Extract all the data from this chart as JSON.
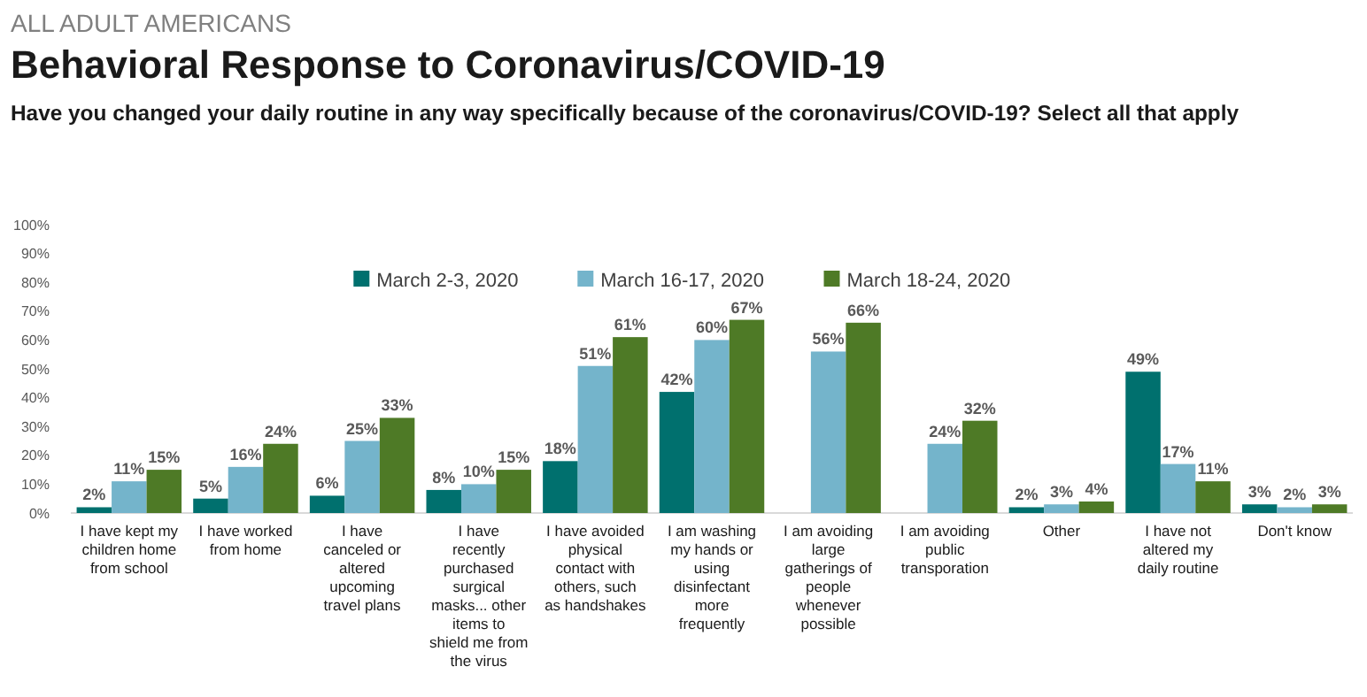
{
  "chart_data": {
    "type": "bar",
    "title": "Behavioral Response to Coronavirus/COVID-19",
    "subtitle": "Have you changed your daily routine in any way specifically because of the coronavirus/COVID-19? Select all that apply",
    "annotations": [
      "ALL ADULT AMERICANS"
    ],
    "categories": [
      "I have kept my children home from school",
      "I have worked from home",
      "I have canceled or altered upcoming travel plans",
      "I have recently purchased surgical masks... other items to shield me from the virus",
      "I have avoided physical contact with others, such as handshakes",
      "I am washing my hands or using disinfectant more frequently",
      "I am avoiding large gatherings of people whenever possible",
      "I am avoiding public transporation",
      "Other",
      "I have not altered my daily routine",
      "Don't know"
    ],
    "series": [
      {
        "name": "March 2-3, 2020",
        "color": "#00706e",
        "values": [
          2,
          5,
          6,
          8,
          18,
          42,
          null,
          null,
          2,
          49,
          3
        ],
        "value_labels": [
          "2%",
          "5%",
          "6%",
          "8%",
          "18%",
          "42%",
          null,
          null,
          "2%",
          "49%",
          "3%"
        ]
      },
      {
        "name": "March 16-17, 2020",
        "color": "#74b4cb",
        "values": [
          11,
          16,
          25,
          10,
          51,
          60,
          56,
          24,
          3,
          17,
          2
        ],
        "value_labels": [
          "11%",
          "16%",
          "25%",
          "10%",
          "51%",
          "60%",
          "56%",
          "24%",
          "3%",
          "17%",
          "2%"
        ]
      },
      {
        "name": "March 18-24, 2020",
        "color": "#4e7a26",
        "values": [
          15,
          24,
          33,
          15,
          61,
          67,
          66,
          32,
          4,
          11,
          3
        ],
        "value_labels": [
          "15%",
          "24%",
          "33%",
          "15%",
          "61%",
          "67%",
          "66%",
          "32%",
          "4%",
          "11%",
          "3%"
        ]
      }
    ],
    "ylim": [
      0,
      100
    ],
    "yticks": [
      {
        "value": 0,
        "label": "0%"
      },
      {
        "value": 10,
        "label": "10%"
      },
      {
        "value": 20,
        "label": "20%"
      },
      {
        "value": 30,
        "label": "30%"
      },
      {
        "value": 40,
        "label": "40%"
      },
      {
        "value": 50,
        "label": "50%"
      },
      {
        "value": 60,
        "label": "60%"
      },
      {
        "value": 70,
        "label": "70%"
      },
      {
        "value": 80,
        "label": "80%"
      },
      {
        "value": 90,
        "label": "90%"
      },
      {
        "value": 100,
        "label": "100%"
      }
    ],
    "grid": false,
    "legend": "top"
  }
}
